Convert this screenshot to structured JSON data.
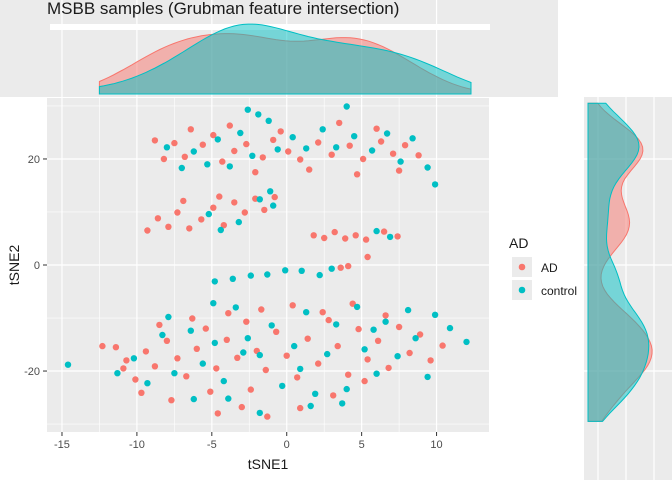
{
  "chart_data": {
    "type": "scatter",
    "title": "MSBB samples (Grubman feature intersection)",
    "xlabel": "tSNE1",
    "ylabel": "tSNE2",
    "xlim": [
      -16,
      13.5
    ],
    "ylim": [
      -31.5,
      31.5
    ],
    "xticks": [
      -15,
      -10,
      -5,
      0,
      5,
      10
    ],
    "yticks": [
      -20,
      0,
      20
    ],
    "grid": true,
    "legend": {
      "title": "AD",
      "position": "right"
    },
    "marginal": "density",
    "series": [
      {
        "name": "AD",
        "color": "#F8766D",
        "points": [
          [
            -8.8,
            23.5
          ],
          [
            -8.2,
            20.0
          ],
          [
            -7.5,
            23.0
          ],
          [
            -6.8,
            20.4
          ],
          [
            -5.6,
            22.7
          ],
          [
            -4.9,
            24.5
          ],
          [
            -4.3,
            19.5
          ],
          [
            -3.5,
            21.5
          ],
          [
            -2.7,
            22.8
          ],
          [
            -1.6,
            20.3
          ],
          [
            -0.9,
            23.6
          ],
          [
            0.1,
            21.4
          ],
          [
            0.9,
            19.9
          ],
          [
            2.1,
            23.1
          ],
          [
            3.0,
            20.8
          ],
          [
            4.2,
            22.5
          ],
          [
            5.1,
            20.0
          ],
          [
            6.3,
            23.3
          ],
          [
            7.1,
            21.0
          ],
          [
            7.9,
            22.6
          ],
          [
            8.8,
            20.7
          ],
          [
            -6.4,
            25.6
          ],
          [
            -3.8,
            26.3
          ],
          [
            -0.4,
            25.2
          ],
          [
            3.5,
            26.8
          ],
          [
            6.0,
            25.7
          ],
          [
            -2.1,
            17.5
          ],
          [
            1.5,
            18.0
          ],
          [
            4.7,
            17.1
          ],
          [
            7.5,
            17.8
          ],
          [
            -9.3,
            6.5
          ],
          [
            -8.6,
            8.8
          ],
          [
            -7.9,
            7.2
          ],
          [
            -7.3,
            9.9
          ],
          [
            -6.5,
            6.9
          ],
          [
            -5.7,
            8.6
          ],
          [
            -4.9,
            10.8
          ],
          [
            -4.2,
            7.5
          ],
          [
            -3.5,
            11.8
          ],
          [
            -2.8,
            9.9
          ],
          [
            -2.1,
            12.5
          ],
          [
            -1.5,
            10.4
          ],
          [
            -0.8,
            12.8
          ],
          [
            -6.9,
            12.1
          ],
          [
            -4.5,
            12.9
          ],
          [
            1.8,
            5.6
          ],
          [
            2.5,
            5.1
          ],
          [
            3.2,
            6.2
          ],
          [
            3.9,
            5.0
          ],
          [
            4.6,
            5.6
          ],
          [
            5.3,
            4.8
          ],
          [
            6.5,
            6.3
          ],
          [
            7.4,
            5.4
          ],
          [
            3.6,
            -0.5
          ],
          [
            4.1,
            -0.2
          ],
          [
            5.4,
            1.5
          ],
          [
            -11.4,
            -15.5
          ],
          [
            -10.7,
            -18.0
          ],
          [
            -10.1,
            -21.6
          ],
          [
            -9.4,
            -16.3
          ],
          [
            -8.8,
            -19.1
          ],
          [
            -8.0,
            -14.3
          ],
          [
            -7.3,
            -17.6
          ],
          [
            -6.7,
            -21.0
          ],
          [
            -6.0,
            -15.8
          ],
          [
            -5.4,
            -12.0
          ],
          [
            -4.7,
            -19.5
          ],
          [
            -4.0,
            -14.1
          ],
          [
            -3.3,
            -17.5
          ],
          [
            -2.7,
            -10.7
          ],
          [
            -2.0,
            -16.2
          ],
          [
            -1.4,
            -19.8
          ],
          [
            -0.7,
            -12.6
          ],
          [
            0.0,
            -17.1
          ],
          [
            0.7,
            -21.2
          ],
          [
            1.4,
            -13.9
          ],
          [
            2.1,
            -18.6
          ],
          [
            2.8,
            -10.4
          ],
          [
            3.4,
            -15.3
          ],
          [
            4.1,
            -20.7
          ],
          [
            4.8,
            -12.1
          ],
          [
            5.4,
            -17.8
          ],
          [
            6.1,
            -14.3
          ],
          [
            6.8,
            -19.4
          ],
          [
            7.5,
            -11.7
          ],
          [
            8.2,
            -16.6
          ],
          [
            8.9,
            -13.1
          ],
          [
            9.6,
            -18.0
          ],
          [
            10.4,
            -15.2
          ],
          [
            -9.7,
            -24.1
          ],
          [
            -7.7,
            -25.5
          ],
          [
            -5.1,
            -23.9
          ],
          [
            -3.0,
            -26.8
          ],
          [
            -1.3,
            -28.6
          ],
          [
            0.9,
            -27.0
          ],
          [
            3.1,
            -24.6
          ],
          [
            5.2,
            -21.9
          ],
          [
            -3.9,
            -9.1
          ],
          [
            -1.7,
            -8.4
          ],
          [
            0.4,
            -7.6
          ],
          [
            2.4,
            -8.9
          ],
          [
            4.4,
            -7.3
          ],
          [
            6.6,
            -9.5
          ],
          [
            -8.5,
            -11.3
          ],
          [
            -6.3,
            -10.1
          ],
          [
            -10.9,
            -19.5
          ],
          [
            -12.3,
            -15.3
          ],
          [
            -4.6,
            -28.0
          ],
          [
            -2.4,
            -23.5
          ]
        ]
      },
      {
        "name": "control",
        "color": "#00BFC4",
        "points": [
          [
            -8.0,
            22.2
          ],
          [
            -7.0,
            18.3
          ],
          [
            -6.2,
            21.4
          ],
          [
            -5.3,
            19.0
          ],
          [
            -4.6,
            23.7
          ],
          [
            -3.8,
            18.6
          ],
          [
            -3.1,
            24.9
          ],
          [
            -2.3,
            20.6
          ],
          [
            -1.9,
            28.4
          ],
          [
            -1.2,
            27.2
          ],
          [
            -2.6,
            29.3
          ],
          [
            -0.6,
            21.8
          ],
          [
            0.4,
            24.1
          ],
          [
            1.3,
            22.0
          ],
          [
            2.4,
            25.6
          ],
          [
            3.3,
            22.2
          ],
          [
            4.0,
            29.9
          ],
          [
            4.5,
            24.3
          ],
          [
            5.7,
            21.6
          ],
          [
            6.7,
            24.8
          ],
          [
            7.6,
            19.5
          ],
          [
            8.4,
            23.9
          ],
          [
            9.4,
            18.4
          ],
          [
            9.9,
            15.2
          ],
          [
            -1.1,
            13.9
          ],
          [
            -1.8,
            12.4
          ],
          [
            -5.2,
            9.6
          ],
          [
            -3.2,
            8.1
          ],
          [
            -0.9,
            11.2
          ],
          [
            -4.4,
            6.6
          ],
          [
            6.0,
            6.4
          ],
          [
            6.9,
            5.3
          ],
          [
            -4.8,
            -3.1
          ],
          [
            -3.6,
            -2.6
          ],
          [
            -2.4,
            -2.0
          ],
          [
            -1.3,
            -1.8
          ],
          [
            -0.1,
            -1.0
          ],
          [
            1.0,
            -1.1
          ],
          [
            2.2,
            -1.9
          ],
          [
            3.0,
            -0.7
          ],
          [
            -14.6,
            -18.8
          ],
          [
            -10.2,
            -17.6
          ],
          [
            -9.3,
            -22.3
          ],
          [
            -8.3,
            -13.2
          ],
          [
            -7.5,
            -20.4
          ],
          [
            -6.4,
            -12.4
          ],
          [
            -5.6,
            -18.6
          ],
          [
            -4.8,
            -14.7
          ],
          [
            -4.2,
            -21.9
          ],
          [
            -3.4,
            -8.0
          ],
          [
            -2.6,
            -13.8
          ],
          [
            -1.8,
            -17.0
          ],
          [
            -1.0,
            -11.4
          ],
          [
            -0.3,
            -22.8
          ],
          [
            0.5,
            -15.3
          ],
          [
            1.3,
            -8.9
          ],
          [
            1.9,
            -24.3
          ],
          [
            2.7,
            -16.8
          ],
          [
            3.3,
            -11.2
          ],
          [
            4.0,
            -23.4
          ],
          [
            4.7,
            -7.9
          ],
          [
            5.2,
            -15.9
          ],
          [
            6.0,
            -20.5
          ],
          [
            6.6,
            -10.7
          ],
          [
            7.4,
            -17.2
          ],
          [
            8.1,
            -8.5
          ],
          [
            8.6,
            -13.8
          ],
          [
            9.4,
            -21.1
          ],
          [
            9.9,
            -9.4
          ],
          [
            10.9,
            -11.9
          ],
          [
            12.0,
            -14.5
          ],
          [
            -6.2,
            -25.3
          ],
          [
            -3.9,
            -25.2
          ],
          [
            -1.8,
            -27.9
          ],
          [
            1.6,
            -26.6
          ],
          [
            3.7,
            -26.1
          ],
          [
            -2.9,
            -16.5
          ],
          [
            0.9,
            -19.6
          ],
          [
            5.8,
            -12.2
          ],
          [
            -7.9,
            -9.8
          ],
          [
            -11.3,
            -20.4
          ],
          [
            -4.9,
            -7.2
          ]
        ]
      }
    ]
  }
}
